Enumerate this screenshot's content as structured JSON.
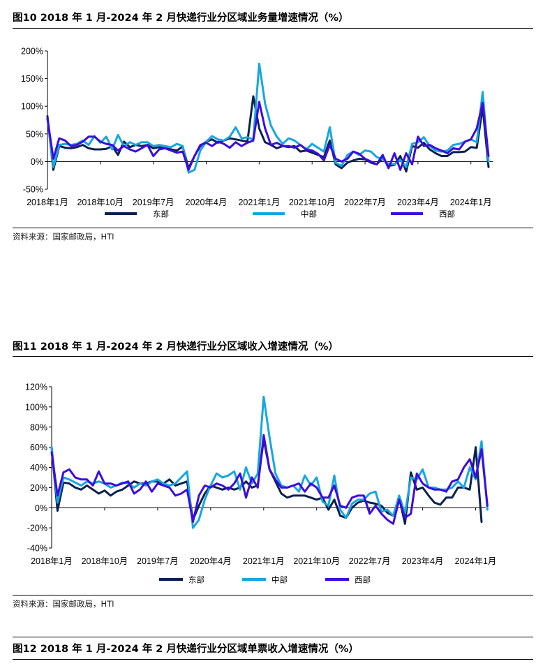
{
  "figures": [
    {
      "title": "图10 2018 年 1 月-2024 年 2 月快递行业分区域业务量增速情况（%）",
      "source": "资料来源：国家邮政局，HTI"
    },
    {
      "title": "图11   2018 年 1 月-2024 年 2 月快递行业分区域收入增速情况（%）",
      "source": "资料来源：国家邮政局，HTI"
    },
    {
      "title": "图12 2018 年 1 月-2024 年 2 月快递行业分区域单票收入增速情况（%）"
    }
  ],
  "chart_data": [
    {
      "type": "line",
      "ylim": [
        -50,
        200
      ],
      "y_ticks": [
        "200%",
        "150%",
        "100%",
        "50%",
        "0%",
        "-50%"
      ],
      "x_ticks": [
        "2018年1月",
        "2018年10月",
        "2019年7月",
        "2020年4月",
        "2021年1月",
        "2021年10月",
        "2022年7月",
        "2023年4月",
        "2024年1月"
      ],
      "grid": false,
      "legend": "bottom",
      "series": [
        {
          "name": "东部",
          "color": "#0b2150",
          "values": [
            82,
            -15,
            28,
            25,
            24,
            26,
            30,
            24,
            22,
            22,
            23,
            28,
            12,
            36,
            26,
            30,
            28,
            30,
            24,
            26,
            24,
            22,
            20,
            27,
            -12,
            10,
            28,
            36,
            40,
            34,
            38,
            42,
            40,
            38,
            36,
            118,
            60,
            35,
            30,
            24,
            28,
            26,
            28,
            18,
            20,
            16,
            12,
            8,
            38,
            -5,
            -12,
            -2,
            2,
            5,
            4,
            -2,
            -5,
            6,
            -8,
            -6,
            10,
            -18,
            28,
            25,
            34,
            22,
            15,
            10,
            10,
            17,
            17,
            18,
            26,
            25,
            98,
            -10
          ]
        },
        {
          "name": "中部",
          "color": "#15a7e0",
          "values": [
            78,
            -10,
            30,
            32,
            30,
            32,
            38,
            30,
            46,
            34,
            45,
            22,
            48,
            28,
            35,
            30,
            35,
            35,
            28,
            30,
            28,
            26,
            32,
            28,
            -20,
            -15,
            20,
            36,
            46,
            40,
            38,
            45,
            62,
            42,
            44,
            40,
            177,
            105,
            65,
            45,
            32,
            42,
            38,
            30,
            22,
            32,
            25,
            18,
            62,
            -2,
            -8,
            12,
            18,
            12,
            20,
            18,
            8,
            4,
            -4,
            -5,
            3,
            -10,
            32,
            35,
            44,
            28,
            20,
            18,
            20,
            30,
            32,
            36,
            40,
            35,
            126,
            0
          ]
        },
        {
          "name": "西部",
          "color": "#3d0ce0",
          "values": [
            78,
            5,
            42,
            38,
            28,
            30,
            36,
            45,
            45,
            36,
            32,
            30,
            20,
            28,
            22,
            18,
            24,
            30,
            10,
            22,
            24,
            20,
            16,
            18,
            -15,
            10,
            30,
            34,
            28,
            36,
            32,
            25,
            35,
            28,
            34,
            38,
            108,
            60,
            30,
            34,
            28,
            28,
            25,
            30,
            22,
            20,
            14,
            2,
            30,
            5,
            0,
            5,
            18,
            14,
            5,
            0,
            -5,
            12,
            -12,
            15,
            -15,
            15,
            -5,
            45,
            28,
            30,
            24,
            20,
            15,
            24,
            22,
            36,
            40,
            60,
            106,
            10
          ]
        }
      ]
    },
    {
      "type": "line",
      "ylim": [
        -40,
        120
      ],
      "y_ticks": [
        "120%",
        "100%",
        "80%",
        "60%",
        "40%",
        "20%",
        "0%",
        "-20%",
        "-40%"
      ],
      "x_ticks": [
        "2018年1月",
        "2018年10月",
        "2019年7月",
        "2020年4月",
        "2021年1月",
        "2021年10月",
        "2022年7月",
        "2023年4月",
        "2024年1月"
      ],
      "grid": false,
      "legend": "bottom",
      "series": [
        {
          "name": "东部",
          "color": "#0b2150",
          "values": [
            60,
            -3,
            25,
            24,
            20,
            18,
            22,
            18,
            14,
            17,
            12,
            16,
            18,
            22,
            26,
            24,
            24,
            26,
            26,
            24,
            28,
            22,
            24,
            26,
            -12,
            2,
            14,
            22,
            20,
            18,
            20,
            18,
            20,
            26,
            20,
            22,
            68,
            38,
            26,
            14,
            10,
            12,
            12,
            12,
            10,
            8,
            10,
            -2,
            8,
            -8,
            -10,
            0,
            5,
            7,
            5,
            4,
            2,
            -5,
            -8,
            10,
            -16,
            35,
            18,
            20,
            12,
            5,
            3,
            10,
            10,
            20,
            20,
            18,
            60,
            -14
          ]
        },
        {
          "name": "中部",
          "color": "#15a7e0",
          "values": [
            60,
            5,
            30,
            28,
            25,
            22,
            26,
            24,
            26,
            24,
            20,
            22,
            25,
            24,
            20,
            24,
            22,
            26,
            28,
            24,
            22,
            24,
            30,
            36,
            -20,
            -12,
            8,
            22,
            34,
            30,
            32,
            36,
            18,
            40,
            24,
            34,
            110,
            70,
            34,
            22,
            20,
            22,
            16,
            32,
            22,
            30,
            6,
            2,
            32,
            -2,
            -10,
            4,
            8,
            8,
            14,
            16,
            -4,
            -2,
            -8,
            12,
            -6,
            30,
            28,
            38,
            20,
            20,
            18,
            18,
            20,
            26,
            20,
            40,
            28,
            66,
            -2
          ]
        },
        {
          "name": "西部",
          "color": "#3d0ce0",
          "values": [
            55,
            12,
            35,
            38,
            30,
            28,
            28,
            22,
            36,
            24,
            24,
            22,
            24,
            26,
            14,
            18,
            26,
            16,
            24,
            22,
            20,
            12,
            14,
            18,
            -14,
            12,
            22,
            20,
            24,
            22,
            18,
            24,
            34,
            10,
            30,
            20,
            72,
            38,
            28,
            20,
            20,
            22,
            24,
            16,
            24,
            20,
            10,
            10,
            22,
            2,
            0,
            10,
            12,
            12,
            -6,
            2,
            -6,
            -12,
            -16,
            8,
            -10,
            -6,
            34,
            24,
            20,
            18,
            18,
            16,
            26,
            28,
            40,
            48,
            30,
            58,
            2
          ]
        }
      ]
    }
  ]
}
